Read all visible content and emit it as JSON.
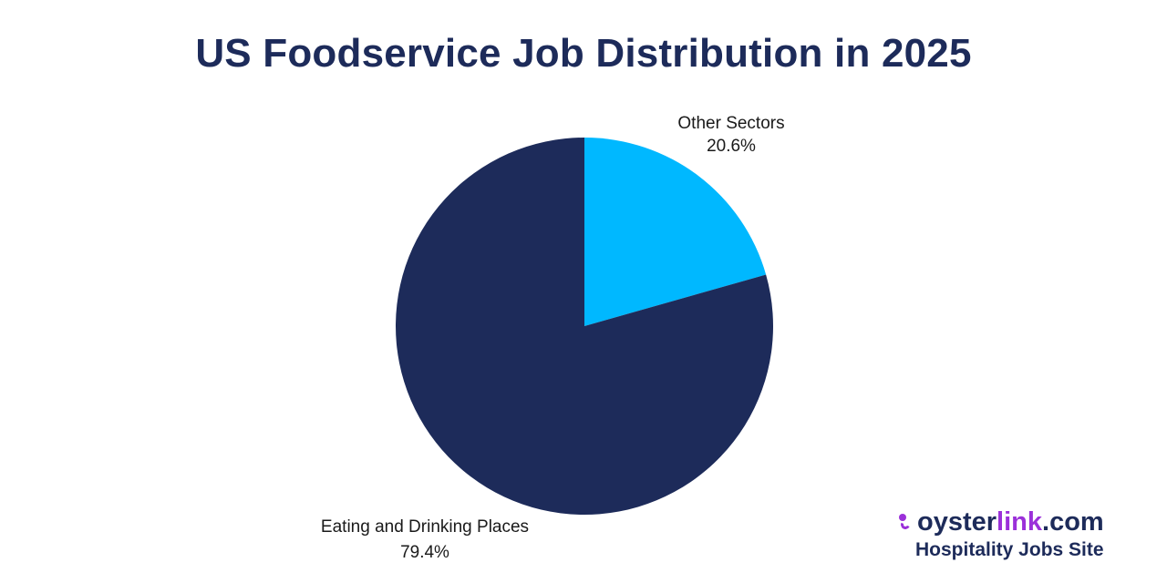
{
  "chart_data": {
    "type": "pie",
    "title": "US Foodservice Job Distribution in 2025",
    "slices": [
      {
        "label": "Other Sectors",
        "value": 20.6,
        "value_label": "20.6%",
        "color": "#00b8ff"
      },
      {
        "label": "Eating and Drinking Places",
        "value": 79.4,
        "value_label": "79.4%",
        "color": "#1d2b5a"
      }
    ],
    "start_angle": "12 o'clock",
    "direction": "clockwise"
  },
  "branding": {
    "name_main": "oyster",
    "name_accent": "link",
    "name_suffix": ".com",
    "tagline": "Hospitality Jobs Site",
    "logo_icon": "oyster-pearl-icon"
  },
  "colors": {
    "title": "#1d2b5a",
    "accent": "#9b30d9"
  }
}
